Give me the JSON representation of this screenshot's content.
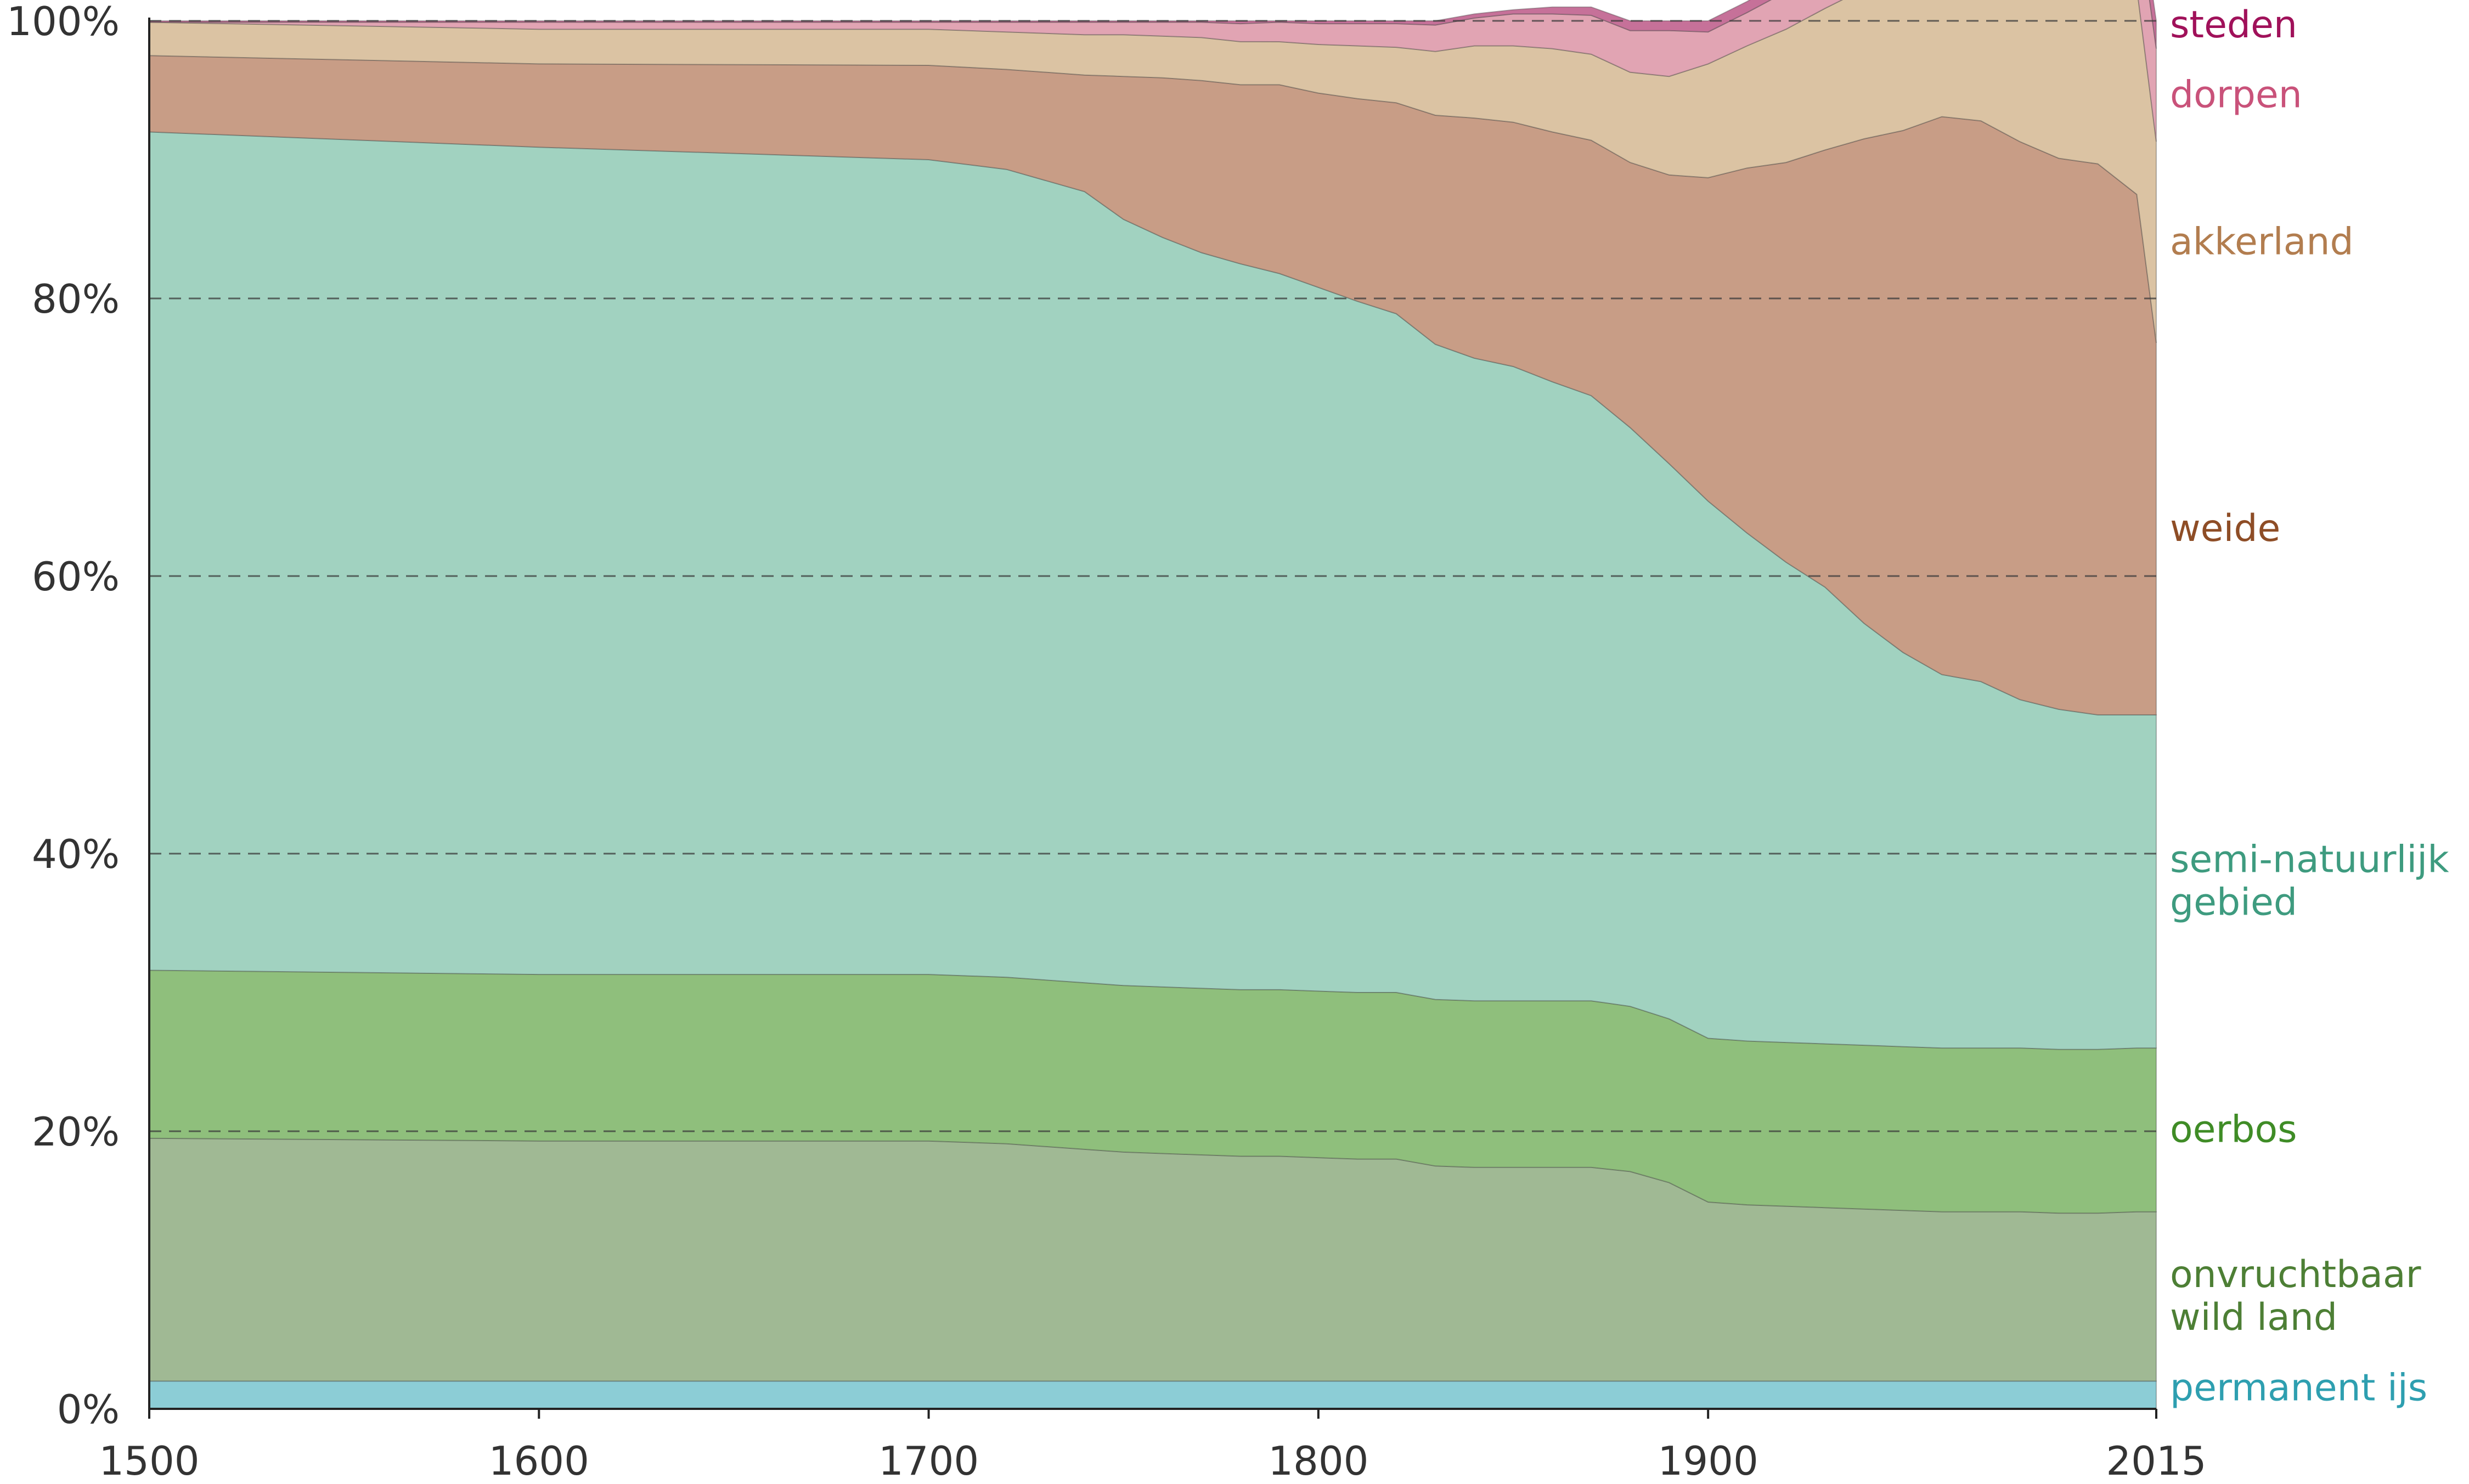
{
  "chart_data": {
    "type": "area",
    "stacked": true,
    "normalized": "percent",
    "title": "",
    "xlabel": "",
    "ylabel": "",
    "x": [
      1500,
      1600,
      1700,
      1720,
      1740,
      1750,
      1760,
      1770,
      1780,
      1790,
      1800,
      1810,
      1820,
      1830,
      1840,
      1850,
      1860,
      1870,
      1880,
      1890,
      1900,
      1910,
      1920,
      1930,
      1940,
      1950,
      1960,
      1970,
      1980,
      1990,
      2000,
      2010,
      2015
    ],
    "xlim": [
      1500,
      2015
    ],
    "ylim": [
      0,
      100
    ],
    "x_ticks": [
      "1500",
      "1600",
      "1700",
      "1800",
      "1900",
      "2015"
    ],
    "x_tick_values": [
      1500,
      1600,
      1700,
      1800,
      1900,
      2015
    ],
    "y_ticks": [
      "0%",
      "20%",
      "40%",
      "60%",
      "80%",
      "100%"
    ],
    "y_tick_values": [
      0,
      20,
      40,
      60,
      80,
      100
    ],
    "grid": "dashed horizontal lines at 20, 40, 60, 80, 100",
    "legend": "direct labels at right end",
    "series": [
      {
        "key": "ice",
        "name": "permanent ijs",
        "color": "#8ccdd6",
        "label_color": "#2e9fb0",
        "label_lines": [
          "permanent ijs"
        ],
        "values": [
          2.0,
          2.0,
          2.0,
          2.0,
          2.0,
          2.0,
          2.0,
          2.0,
          2.0,
          2.0,
          2.0,
          2.0,
          2.0,
          2.0,
          2.0,
          2.0,
          2.0,
          2.0,
          2.0,
          2.0,
          2.0,
          2.0,
          2.0,
          2.0,
          2.0,
          2.0,
          2.0,
          2.0,
          2.0,
          2.0,
          2.0,
          2.0,
          2.0
        ]
      },
      {
        "key": "barren",
        "name": "onvruchtbaar wild land",
        "color": "#a0b994",
        "label_color": "#4d7f35",
        "label_lines": [
          "onvruchtbaar",
          "wild land"
        ],
        "values": [
          17.5,
          17.3,
          17.3,
          17.1,
          16.7,
          16.5,
          16.4,
          16.3,
          16.2,
          16.2,
          16.1,
          16.0,
          16.0,
          15.5,
          15.4,
          15.4,
          15.4,
          15.4,
          15.1,
          14.3,
          12.9,
          12.7,
          12.6,
          12.5,
          12.4,
          12.3,
          12.2,
          12.2,
          12.2,
          12.1,
          12.1,
          12.2,
          12.2
        ]
      },
      {
        "key": "primary",
        "name": "oerbos",
        "color": "#8fbf7c",
        "label_color": "#3f8c26",
        "label_lines": [
          "oerbos"
        ],
        "values": [
          12.1,
          12.0,
          12.0,
          12.0,
          12.0,
          12.0,
          12.0,
          12.0,
          12.0,
          12.0,
          12.0,
          12.0,
          12.0,
          12.0,
          12.0,
          12.0,
          12.0,
          12.0,
          11.9,
          11.8,
          11.8,
          11.8,
          11.8,
          11.8,
          11.8,
          11.8,
          11.8,
          11.8,
          11.8,
          11.8,
          11.8,
          11.8,
          11.8
        ]
      },
      {
        "key": "seminat",
        "name": "semi-natuurlijk gebied",
        "color": "#a1d2c0",
        "label_color": "#3e9b7f",
        "label_lines": [
          "semi-natuurlijk",
          "gebied"
        ],
        "values": [
          60.4,
          59.6,
          58.7,
          58.2,
          57.0,
          55.2,
          54.0,
          53.0,
          52.3,
          51.6,
          50.7,
          49.8,
          48.9,
          47.2,
          46.3,
          45.7,
          44.6,
          43.6,
          41.7,
          40.0,
          38.7,
          36.6,
          34.6,
          32.9,
          30.4,
          28.4,
          26.9,
          26.4,
          25.1,
          24.5,
          24.1,
          24.0,
          24.0
        ]
      },
      {
        "key": "pasture",
        "name": "weide",
        "color": "#c89d86",
        "label_color": "#8e4d26",
        "label_lines": [
          "weide"
        ],
        "values": [
          5.5,
          6.0,
          6.8,
          7.2,
          8.4,
          10.3,
          11.5,
          12.4,
          12.9,
          13.6,
          14.0,
          14.6,
          15.2,
          16.5,
          17.3,
          17.6,
          18.0,
          18.4,
          19.1,
          20.8,
          23.3,
          26.3,
          28.8,
          31.5,
          34.9,
          37.6,
          40.2,
          40.4,
          40.2,
          39.7,
          39.7,
          37.5,
          26.8
        ]
      },
      {
        "key": "cropland",
        "name": "akkerland",
        "color": "#dbc3a3",
        "label_color": "#b27d4f",
        "label_lines": [
          "akkerland"
        ],
        "values": [
          2.4,
          2.5,
          2.6,
          2.7,
          2.9,
          3.0,
          3.0,
          3.1,
          3.1,
          3.1,
          3.5,
          3.8,
          4.0,
          4.6,
          5.2,
          5.5,
          6.0,
          6.2,
          6.5,
          7.1,
          8.2,
          8.8,
          9.6,
          10.2,
          10.8,
          11.6,
          12.0,
          12.6,
          13.3,
          14.1,
          14.4,
          14.9,
          14.5
        ]
      },
      {
        "key": "villages",
        "name": "dorpen",
        "color": "#e1a4b3",
        "label_color": "#c9527a",
        "label_lines": [
          "dorpen"
        ],
        "values": [
          0.0,
          0.5,
          0.5,
          0.7,
          0.9,
          0.9,
          1.0,
          1.1,
          1.3,
          1.4,
          1.5,
          1.6,
          1.7,
          1.9,
          2.0,
          2.3,
          2.5,
          2.8,
          3.0,
          3.3,
          2.3,
          2.4,
          2.7,
          3.0,
          3.4,
          3.6,
          3.9,
          4.6,
          4.9,
          5.0,
          5.3,
          5.8,
          6.7
        ]
      },
      {
        "key": "cities",
        "name": "steden",
        "color": "#c67199",
        "label_color": "#a0115a",
        "label_lines": [
          "steden"
        ],
        "values": [
          0.1,
          0.1,
          0.1,
          0.1,
          0.1,
          0.1,
          0.1,
          0.1,
          0.2,
          0.1,
          0.2,
          0.2,
          0.2,
          0.3,
          0.3,
          0.3,
          0.5,
          0.6,
          0.7,
          0.7,
          0.8,
          0.8,
          0.9,
          0.9,
          1.0,
          1.1,
          1.2,
          1.3,
          1.3,
          1.4,
          1.6,
          1.8,
          2.0
        ]
      }
    ]
  }
}
